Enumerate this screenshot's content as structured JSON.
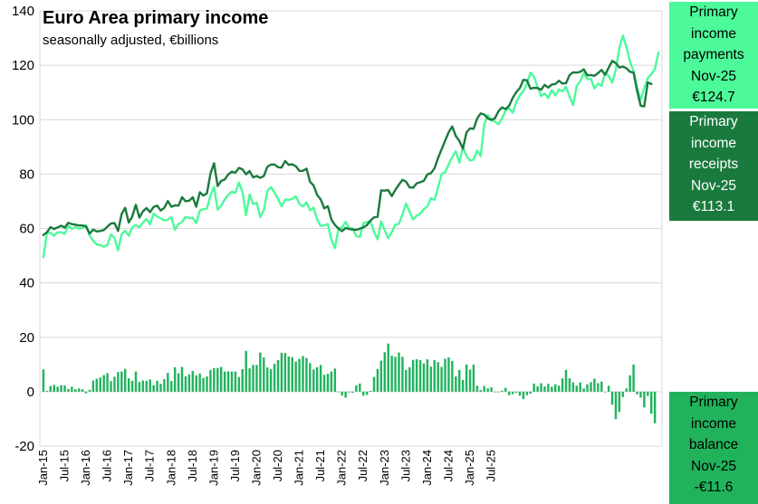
{
  "chart_data": {
    "type": "line+bar",
    "title": "Euro Area primary income",
    "subtitle": "seasonally adjusted, €billions",
    "ylim": [
      -20,
      140
    ],
    "yticks": [
      -20,
      0,
      20,
      40,
      60,
      80,
      100,
      120,
      140
    ],
    "grid": true,
    "start": "Jan-15",
    "xtick_labels": [
      "Jan-15",
      "Jul-15",
      "Jan-16",
      "Jul-16",
      "Jan-17",
      "Jul-17",
      "Jan-18",
      "Jul-18",
      "Jan-19",
      "Jul-19",
      "Jan-20",
      "Jul-20",
      "Jan-21",
      "Jul-21",
      "Jan-22",
      "Jul-22",
      "Jan-23",
      "Jul-23",
      "Jan-24",
      "Jul-24",
      "Jan-25",
      "Jul-25"
    ],
    "colors": {
      "payments": "#4dfa9a",
      "receipts": "#1a7a3e",
      "balance": "#21b35c",
      "grid": "#d9d9d9"
    },
    "series": [
      {
        "name": "Primary income payments",
        "kind": "line",
        "values": [
          49.4,
          58.3,
          58.4,
          57.3,
          58.6,
          58.6,
          58.0,
          61.1,
          59.8,
          60.5,
          59.9,
          60.2,
          61.3,
          57.4,
          55.5,
          54.1,
          53.9,
          53.3,
          53.9,
          57.9,
          56.5,
          51.9,
          57.9,
          59.2,
          57.3,
          60.4,
          61.3,
          60.4,
          62.2,
          63.5,
          61.5,
          65.5,
          64.4,
          63.7,
          63.0,
          63.2,
          64.1,
          59.5,
          61.6,
          62.4,
          64.3,
          63.8,
          63.9,
          62.0,
          66.6,
          67.1,
          67.3,
          72.2,
          75.3,
          66.9,
          68.4,
          70.6,
          72.4,
          73.5,
          73.1,
          76.9,
          73.4,
          64.9,
          72.5,
          69.0,
          69.5,
          64.2,
          66.7,
          73.8,
          75.2,
          73.2,
          70.9,
          68.1,
          70.6,
          70.5,
          70.9,
          71.8,
          69.1,
          68.1,
          69.6,
          66.7,
          67.6,
          63.3,
          60.9,
          61.2,
          61.6,
          55.9,
          52.8,
          60.0,
          60.4,
          62.4,
          60.1,
          60.0,
          57.2,
          56.9,
          61.9,
          62.4,
          62.6,
          58.7,
          56.0,
          62.6,
          59.4,
          56.4,
          58.7,
          61.4,
          61.7,
          65.1,
          69.2,
          66.1,
          63.3,
          64.7,
          65.4,
          67.1,
          68.0,
          71.1,
          70.5,
          75.0,
          80.0,
          80.7,
          83.6,
          86.2,
          88.4,
          84.2,
          89.9,
          86.6,
          85.0,
          85.3,
          88.7,
          86.6,
          98.2,
          101.7,
          99.8,
          99.3,
          98.3,
          100.5,
          103.3,
          104.1,
          102.5,
          106.4,
          108.9,
          110.5,
          113.1,
          117.3,
          115.8,
          112.1,
          108.7,
          109.6,
          107.9,
          110.9,
          108.9,
          111.1,
          110.4,
          112.1,
          108.4,
          105.4,
          112.4,
          114.0,
          117.1,
          114.9,
          115.0,
          111.5,
          113.3,
          112.4,
          117.3,
          116.1,
          113.6,
          118.2,
          126.4,
          130.9,
          126.7,
          121.2,
          118.0,
          111.6,
          107.3,
          111.6,
          115.3,
          116.7,
          118.6,
          124.7
        ],
        "last_label": "Primary income payments",
        "last_period": "Nov-25",
        "last_value": "€124.7"
      },
      {
        "name": "Primary income receipts",
        "kind": "line",
        "values": [
          57.6,
          58.6,
          60.5,
          59.8,
          60.4,
          61.0,
          60.3,
          62.1,
          61.6,
          61.4,
          61.1,
          61.1,
          60.7,
          58.1,
          59.6,
          58.9,
          59.1,
          59.4,
          60.7,
          61.8,
          62.0,
          59.1,
          65.3,
          67.6,
          62.2,
          64.4,
          68.7,
          64.0,
          66.3,
          67.5,
          66.0,
          67.9,
          68.4,
          66.6,
          67.6,
          70.1,
          68.0,
          68.5,
          68.4,
          71.5,
          70.0,
          70.2,
          71.5,
          68.0,
          73.3,
          72.1,
          72.9,
          80.2,
          84.0,
          75.6,
          77.5,
          78.0,
          79.9,
          80.9,
          80.5,
          82.3,
          81.7,
          79.9,
          81.1,
          78.8,
          79.3,
          78.6,
          79.3,
          82.7,
          83.5,
          83.5,
          82.5,
          82.4,
          84.8,
          83.4,
          83.6,
          82.9,
          81.2,
          81.2,
          82.0,
          77.2,
          75.8,
          72.3,
          70.7,
          67.4,
          68.2,
          63.3,
          61.3,
          60.0,
          59.0,
          60.2,
          59.8,
          59.6,
          59.5,
          59.9,
          60.4,
          61.2,
          62.9,
          64.1,
          64.3,
          74.0,
          73.9,
          74.1,
          71.9,
          74.2,
          76.1,
          77.9,
          77.2,
          75.1,
          75.0,
          76.6,
          77.0,
          77.5,
          79.9,
          80.3,
          82.1,
          85.9,
          89.1,
          92.3,
          95.4,
          97.5,
          94.0,
          92.2,
          89.3,
          95.3,
          96.8,
          96.6,
          100.4,
          102.3,
          101.9,
          100.5,
          99.9,
          100.5,
          103.1,
          104.5,
          103.9,
          105.1,
          108.0,
          110.1,
          111.6,
          114.6,
          114.5,
          111.4,
          111.7,
          111.6,
          111.0,
          112.8,
          111.8,
          112.9,
          113.1,
          114.3,
          113.3,
          113.4,
          116.4,
          117.4,
          117.3,
          117.6,
          118.5,
          116.3,
          116.4,
          116.1,
          117.1,
          118.3,
          116.5,
          119.1,
          121.6,
          120.8,
          119.2,
          119.5,
          118.9,
          117.6,
          117.3,
          110.6,
          105.1,
          104.9,
          113.7,
          113.1
        ],
        "last_label": "Primary income receipts",
        "last_period": "Nov-25",
        "last_value": "€113.1"
      },
      {
        "name": "Primary income balance",
        "kind": "bar",
        "values": [
          8.2,
          0.3,
          2.1,
          2.5,
          1.8,
          2.4,
          2.3,
          1.0,
          1.8,
          0.9,
          1.2,
          0.9,
          -0.6,
          0.7,
          4.1,
          4.8,
          5.2,
          6.1,
          6.8,
          3.9,
          5.5,
          7.2,
          7.4,
          8.4,
          4.9,
          4.0,
          7.4,
          3.6,
          4.1,
          4.0,
          4.5,
          2.4,
          4.0,
          2.9,
          4.6,
          6.9,
          3.9,
          9.0,
          6.8,
          9.1,
          5.7,
          6.4,
          7.6,
          6.0,
          6.7,
          5.0,
          5.6,
          8.0,
          8.7,
          8.7,
          9.1,
          7.4,
          7.5,
          7.4,
          7.4,
          5.4,
          8.3,
          15.0,
          8.6,
          9.8,
          9.8,
          14.4,
          12.6,
          8.9,
          8.3,
          10.3,
          11.6,
          14.3,
          14.2,
          12.9,
          12.7,
          11.1,
          12.1,
          13.1,
          12.4,
          10.5,
          8.2,
          9.0,
          9.8,
          6.2,
          6.6,
          7.4,
          8.5,
          0.0,
          -1.4,
          -2.2,
          -0.3,
          -0.4,
          2.3,
          3.0,
          -1.5,
          -1.2,
          0.3,
          5.4,
          8.3,
          11.4,
          14.5,
          17.7,
          13.2,
          12.8,
          14.4,
          12.8,
          8.0,
          9.0,
          11.7,
          11.9,
          11.6,
          10.4,
          11.9,
          9.2,
          11.6,
          10.9,
          9.1,
          12.1,
          12.6,
          11.3,
          5.6,
          8.0,
          4.3,
          10.0,
          8.1,
          10.0,
          2.2,
          0.6,
          2.1,
          1.2,
          1.6,
          0.0,
          -0.2,
          0.4,
          1.4,
          -1.3,
          -0.9,
          -0.4,
          -1.5,
          -2.7,
          -1.3,
          -0.7,
          3.0,
          2.0,
          3.1,
          1.9,
          2.9,
          1.8,
          2.7,
          2.2,
          4.9,
          8.0,
          4.9,
          3.4,
          2.2,
          3.4,
          1.2,
          2.7,
          3.5,
          4.8,
          3.1,
          3.7,
          -0.2,
          2.2,
          -4.8,
          -10.1,
          -7.5,
          -2.0,
          1.2,
          6.0,
          10.0,
          -1.0,
          -2.2,
          -5.8,
          -1.6,
          -8.1,
          -11.6
        ],
        "last_label": "Primary income balance",
        "last_period": "Nov-25",
        "last_value": "-€11.6"
      }
    ]
  }
}
